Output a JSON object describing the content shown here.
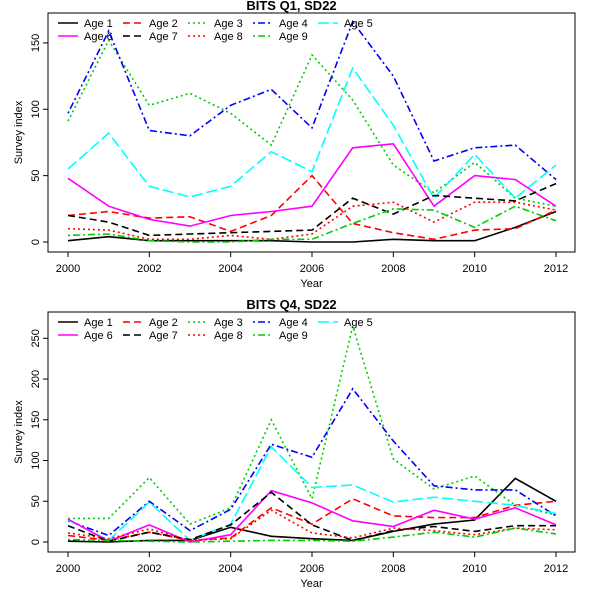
{
  "chart_data": [
    {
      "type": "line",
      "title": "BITS Q1, SD22",
      "xlabel": "Year",
      "ylabel": "Survey index",
      "xlim": [
        2000,
        2012
      ],
      "ylim": [
        0,
        165
      ],
      "x_ticks": [
        2000,
        2002,
        2004,
        2006,
        2008,
        2010,
        2012
      ],
      "y_ticks": [
        0,
        50,
        100,
        150
      ],
      "legend_position": "top-left",
      "x": [
        2000,
        2001,
        2002,
        2003,
        2004,
        2005,
        2006,
        2007,
        2008,
        2009,
        2010,
        2011,
        2012
      ],
      "series": [
        {
          "name": "Age 1",
          "color": "#000000",
          "dash": "solid",
          "values": [
            1,
            4,
            1,
            1,
            1,
            1,
            0,
            0,
            2,
            1,
            1,
            11,
            23
          ]
        },
        {
          "name": "Age 2",
          "color": "#ff0000",
          "dash": "dashed",
          "values": [
            20,
            23,
            18,
            19,
            8,
            20,
            50,
            14,
            7,
            2,
            9,
            10,
            24
          ]
        },
        {
          "name": "Age 3",
          "color": "#00cd00",
          "dash": "dotted",
          "values": [
            91,
            152,
            103,
            112,
            97,
            73,
            141,
            107,
            58,
            37,
            60,
            33,
            27
          ]
        },
        {
          "name": "Age 4",
          "color": "#0000ff",
          "dash": "dotdash",
          "values": [
            97,
            159,
            84,
            80,
            103,
            115,
            86,
            166,
            125,
            61,
            71,
            73,
            47
          ]
        },
        {
          "name": "Age 5",
          "color": "#00ffff",
          "dash": "longdash",
          "values": [
            55,
            82,
            42,
            34,
            42,
            68,
            53,
            131,
            88,
            33,
            66,
            33,
            58
          ]
        },
        {
          "name": "Age 6",
          "color": "#ff00ff",
          "dash": "solid",
          "values": [
            48,
            27,
            17,
            12,
            20,
            23,
            27,
            71,
            74,
            27,
            50,
            47,
            27
          ]
        },
        {
          "name": "Age 7",
          "color": "#000000",
          "dash": "dashed",
          "values": [
            20,
            15,
            5,
            6,
            7,
            8,
            9,
            33,
            21,
            35,
            33,
            31,
            44
          ]
        },
        {
          "name": "Age 8",
          "color": "#ff0000",
          "dash": "dotted",
          "values": [
            10,
            9,
            2,
            2,
            5,
            2,
            6,
            27,
            30,
            15,
            30,
            30,
            24
          ]
        },
        {
          "name": "Age 9",
          "color": "#00cd00",
          "dash": "dotdash",
          "values": [
            5,
            6,
            1,
            0,
            0,
            2,
            2,
            14,
            25,
            24,
            11,
            27,
            16
          ]
        }
      ]
    },
    {
      "type": "line",
      "title": "BITS Q4, SD22",
      "xlabel": "Year",
      "ylabel": "Survey index",
      "xlim": [
        2000,
        2012
      ],
      "ylim": [
        0,
        270
      ],
      "x_ticks": [
        2000,
        2002,
        2004,
        2006,
        2008,
        2010,
        2012
      ],
      "y_ticks": [
        0,
        50,
        100,
        150,
        200,
        250
      ],
      "legend_position": "top-left",
      "x": [
        2000,
        2001,
        2002,
        2003,
        2004,
        2005,
        2006,
        2007,
        2008,
        2009,
        2010,
        2011,
        2012
      ],
      "series": [
        {
          "name": "Age 1",
          "color": "#000000",
          "dash": "solid",
          "values": [
            1,
            0,
            2,
            2,
            18,
            7,
            4,
            2,
            13,
            22,
            27,
            78,
            50
          ]
        },
        {
          "name": "Age 2",
          "color": "#ff0000",
          "dash": "dashed",
          "values": [
            8,
            2,
            12,
            2,
            5,
            42,
            22,
            53,
            32,
            30,
            30,
            45,
            50
          ]
        },
        {
          "name": "Age 3",
          "color": "#00cd00",
          "dash": "dotted",
          "values": [
            29,
            29,
            79,
            22,
            42,
            150,
            53,
            265,
            102,
            65,
            81,
            45,
            33
          ]
        },
        {
          "name": "Age 4",
          "color": "#0000ff",
          "dash": "dotdash",
          "values": [
            26,
            8,
            50,
            14,
            40,
            120,
            104,
            188,
            124,
            69,
            64,
            64,
            32
          ]
        },
        {
          "name": "Age 5",
          "color": "#00ffff",
          "dash": "longdash",
          "values": [
            27,
            2,
            49,
            2,
            22,
            117,
            67,
            70,
            49,
            55,
            50,
            45,
            35
          ]
        },
        {
          "name": "Age 6",
          "color": "#ff00ff",
          "dash": "solid",
          "values": [
            28,
            1,
            21,
            0,
            9,
            63,
            48,
            26,
            19,
            39,
            28,
            42,
            21
          ]
        },
        {
          "name": "Age 7",
          "color": "#000000",
          "dash": "dashed",
          "values": [
            20,
            1,
            12,
            3,
            21,
            61,
            21,
            2,
            14,
            19,
            13,
            20,
            20
          ]
        },
        {
          "name": "Age 8",
          "color": "#ff0000",
          "dash": "dotted",
          "values": [
            11,
            4,
            16,
            2,
            4,
            39,
            11,
            5,
            17,
            14,
            9,
            17,
            15
          ]
        },
        {
          "name": "Age 9",
          "color": "#00cd00",
          "dash": "dotdash",
          "values": [
            3,
            2,
            1,
            0,
            1,
            2,
            2,
            1,
            6,
            12,
            6,
            17,
            10
          ]
        }
      ]
    }
  ]
}
